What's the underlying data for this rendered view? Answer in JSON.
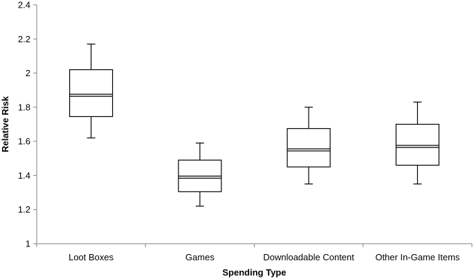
{
  "chart_data": {
    "type": "box",
    "title": "",
    "xlabel": "Spending Type",
    "ylabel": "Relative Risk",
    "ylim": [
      1,
      2.4
    ],
    "yticks": [
      1,
      1.2,
      1.4,
      1.6,
      1.8,
      2,
      2.2,
      2.4
    ],
    "ytick_labels": [
      "1",
      "1.2",
      "1.4",
      "1.6",
      "1.8",
      "2",
      "2.2",
      "2.4"
    ],
    "categories": [
      "Loot Boxes",
      "Games",
      "Downloadable Content",
      "Other In-Game Items"
    ],
    "boxes": [
      {
        "category": "Loot Boxes",
        "whisker_low": 1.62,
        "q1": 1.745,
        "median": 1.87,
        "q3": 2.02,
        "whisker_high": 2.17
      },
      {
        "category": "Games",
        "whisker_low": 1.22,
        "q1": 1.305,
        "median": 1.39,
        "q3": 1.49,
        "whisker_high": 1.59
      },
      {
        "category": "Downloadable Content",
        "whisker_low": 1.35,
        "q1": 1.45,
        "median": 1.55,
        "q3": 1.675,
        "whisker_high": 1.8
      },
      {
        "category": "Other In-Game Items",
        "whisker_low": 1.35,
        "q1": 1.46,
        "median": 1.57,
        "q3": 1.7,
        "whisker_high": 1.83
      }
    ],
    "grid": false,
    "legend": "none"
  }
}
